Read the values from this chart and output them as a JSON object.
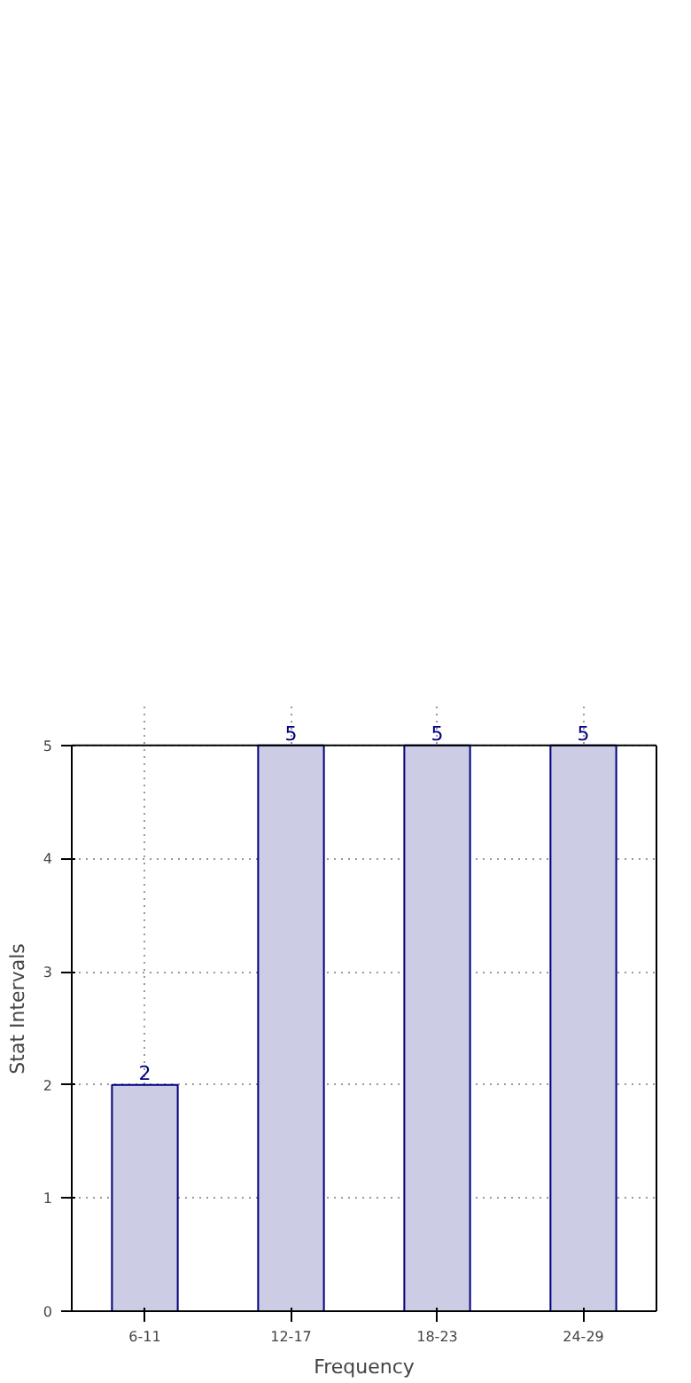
{
  "chart_data": {
    "type": "bar",
    "xlabel": "Frequency",
    "ylabel": "Stat Intervals",
    "categories": [
      "6-11",
      "12-17",
      "18-23",
      "24-29"
    ],
    "series": [
      {
        "color": "#ccccE4",
        "values": [
          2,
          5,
          5,
          5
        ]
      }
    ],
    "ylim": [
      0,
      5
    ],
    "yticks": [
      0,
      1,
      2,
      3,
      4,
      5
    ],
    "grid": true,
    "data_labels": true
  }
}
